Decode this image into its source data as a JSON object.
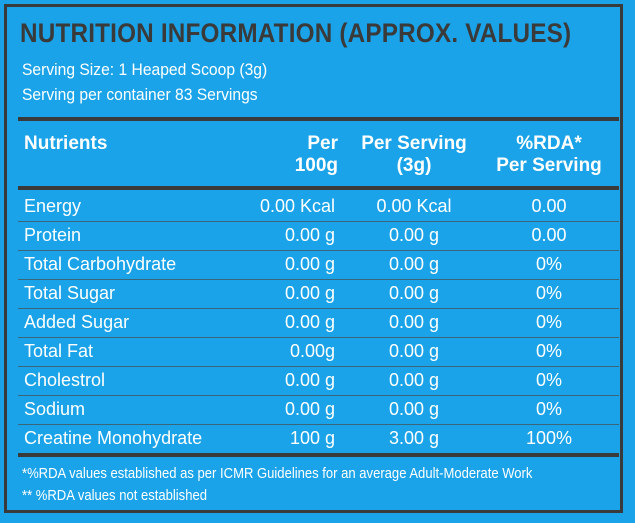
{
  "title": "NUTRITION INFORMATION (APPROX. VALUES)",
  "serving_size": "Serving Size: 1 Heaped Scoop (3g)",
  "servings_per_container": "Serving per container 83 Servings",
  "headers": {
    "nutrients": "Nutrients",
    "per_100g_1": "Per",
    "per_100g_2": "100g",
    "per_serving_1": "Per Serving",
    "per_serving_2": "(3g)",
    "rda_1": "%RDA*",
    "rda_2": "Per Serving"
  },
  "rows": [
    {
      "name": "Energy",
      "per100": "0.00 Kcal",
      "serving": "0.00 Kcal",
      "rda": "0.00"
    },
    {
      "name": "Protein",
      "per100": "0.00 g",
      "serving": "0.00 g",
      "rda": "0.00"
    },
    {
      "name": "Total Carbohydrate",
      "per100": "0.00 g",
      "serving": "0.00 g",
      "rda": "0%"
    },
    {
      "name": "Total Sugar",
      "per100": "0.00 g",
      "serving": "0.00 g",
      "rda": "0%"
    },
    {
      "name": "Added Sugar",
      "per100": "0.00 g",
      "serving": "0.00 g",
      "rda": "0%"
    },
    {
      "name": "Total Fat",
      "per100": "0.00g",
      "serving": "0.00 g",
      "rda": "0%"
    },
    {
      "name": "Cholestrol",
      "per100": "0.00 g",
      "serving": "0.00 g",
      "rda": "0%"
    },
    {
      "name": "Sodium",
      "per100": "0.00 g",
      "serving": "0.00 g",
      "rda": "0%"
    },
    {
      "name": "Creatine Monohydrate",
      "per100": "100 g",
      "serving": "3.00 g",
      "rda": "100%"
    }
  ],
  "footnotes": [
    "*%RDA values established as per ICMR Guidelines for an average Adult-Moderate Work",
    "** %RDA values not established"
  ]
}
